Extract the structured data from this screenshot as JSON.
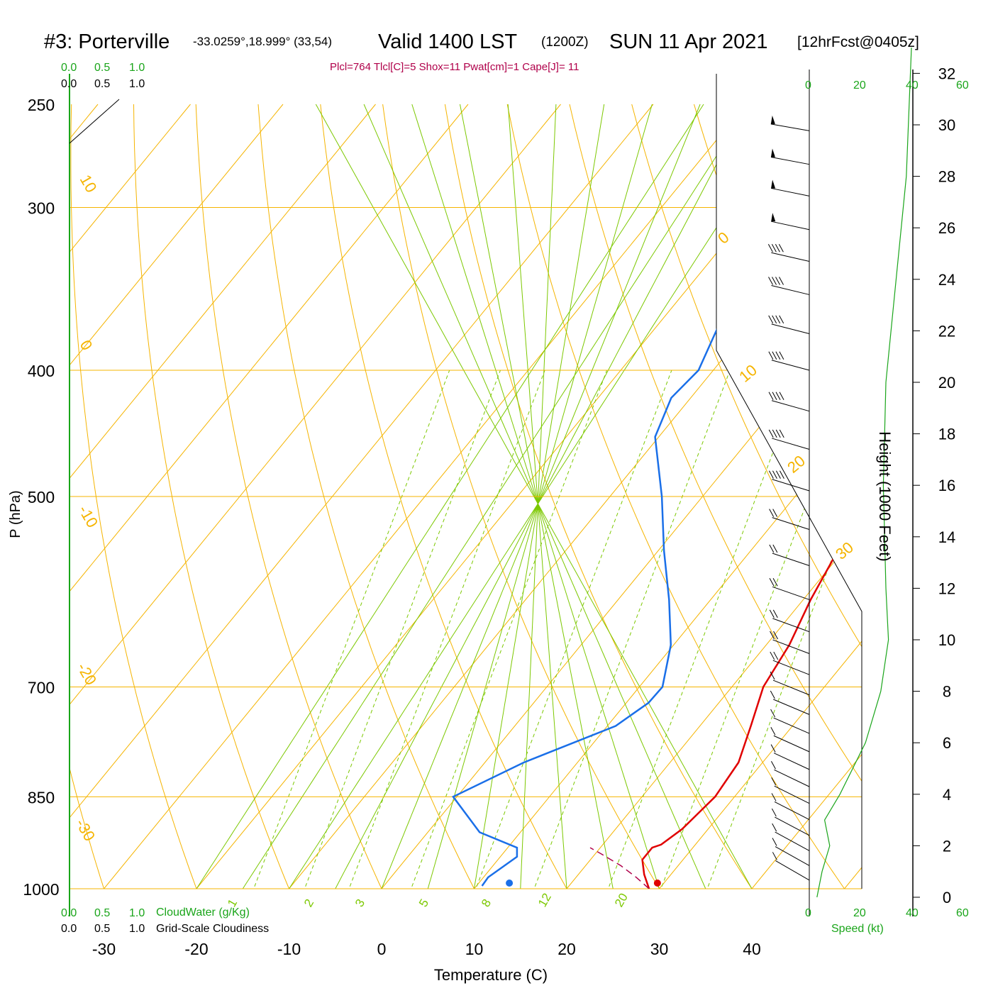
{
  "header": {
    "station": "#3: Porterville",
    "coords": "-33.0259°,18.999° (33,54)",
    "valid": "Valid 1400 LST",
    "zulu": "(1200Z)",
    "date": "SUN 11 Apr 2021",
    "forecast": "[12hrFcst@0405z]",
    "indices": "Plcl=764 Tlcl[C]=5 Shox=11 Pwat[cm]=1 Cape[J]= 11"
  },
  "scales": {
    "cloudwater_ticks": [
      "0.0",
      "0.5",
      "1.0"
    ],
    "cloudwater_label": "CloudWater (g/Kg)",
    "cloudiness_ticks": [
      "0.0",
      "0.5",
      "1.0"
    ],
    "cloudiness_label": "Grid-Scale Cloudiness",
    "speed_ticks": [
      "0",
      "20",
      "40",
      "60"
    ],
    "speed_label": "Speed (kt)"
  },
  "colors": {
    "isotherm": "#f5b400",
    "dry_adiabat": "#7cc800",
    "mixing_ratio": "#7cc800",
    "temperature": "#e00000",
    "dewpoint": "#1a6fe8",
    "scale_green": "#1aa51a",
    "header_red": "#b0004a"
  },
  "chart_data": {
    "type": "skew-t",
    "title": "#3: Porterville",
    "xlabel": "Temperature (C)",
    "ylabel": "P (hPa)",
    "y2label": "Height (1000 Feet)",
    "xlim": [
      -30,
      45
    ],
    "ylim": [
      1000,
      250
    ],
    "x_ticks": [
      -30,
      -20,
      -10,
      0,
      10,
      20,
      30,
      40
    ],
    "p_ticks": [
      250,
      300,
      400,
      500,
      700,
      850,
      1000
    ],
    "height_ticks": [
      0,
      2,
      4,
      6,
      8,
      10,
      12,
      14,
      16,
      18,
      20,
      22,
      24,
      26,
      28,
      30,
      32
    ],
    "isotherm_labels": [
      10,
      0,
      -10,
      -20,
      -30,
      0,
      10,
      20,
      30
    ],
    "mixing_ratio_labels": [
      "1",
      "2",
      "3",
      "5",
      "8",
      "12",
      "20"
    ],
    "temperature": {
      "name": "temperature",
      "p": [
        1000,
        975,
        950,
        930,
        925,
        900,
        850,
        800,
        750,
        700,
        650,
        600,
        550,
        500,
        450,
        400,
        350,
        300,
        262
      ],
      "t": [
        28.9,
        27.1,
        25.6,
        25.6,
        26.3,
        27.2,
        27.9,
        27.4,
        25.5,
        23.4,
        22.5,
        20.8,
        19.4,
        18.3,
        15.9,
        12.8,
        9.6,
        5.2,
        3.2
      ]
    },
    "dewpoint": {
      "name": "dewpoint",
      "p": [
        995,
        980,
        945,
        930,
        905,
        850,
        800,
        750,
        720,
        700,
        650,
        600,
        550,
        500,
        450,
        420,
        400,
        350,
        300,
        280,
        262
      ],
      "td": [
        10.6,
        10.5,
        11.8,
        11.0,
        5.6,
        -0.4,
        4.2,
        10.9,
        12.4,
        12.5,
        9.7,
        5.5,
        0.6,
        -4.4,
        -10.4,
        -12.1,
        -11.6,
        -14.6,
        -15.1,
        -10.9,
        -9.9
      ]
    },
    "surface_temperature_point": 29.8,
    "surface_dewpoint_point": 13.8,
    "parcel": {
      "p": [
        1000,
        980,
        960,
        940,
        930
      ],
      "t": [
        28.9,
        26.5,
        23.8,
        20.6,
        18.9
      ]
    },
    "wind_levels_hpa": [
      262,
      278,
      294,
      312,
      330,
      350,
      375,
      400,
      430,
      460,
      495,
      530,
      565,
      600,
      635,
      660,
      685,
      710,
      735,
      760,
      785,
      810,
      835,
      860,
      885,
      910,
      935,
      960,
      985
    ],
    "wind_speed_profile": {
      "heights_kft": [
        0,
        1,
        2,
        3,
        4,
        6,
        8,
        10,
        12,
        16,
        20,
        24,
        28,
        33
      ],
      "speed_kt": [
        3,
        5,
        8,
        6,
        12,
        22,
        28,
        31,
        30,
        29,
        30,
        34,
        38,
        40
      ]
    }
  }
}
